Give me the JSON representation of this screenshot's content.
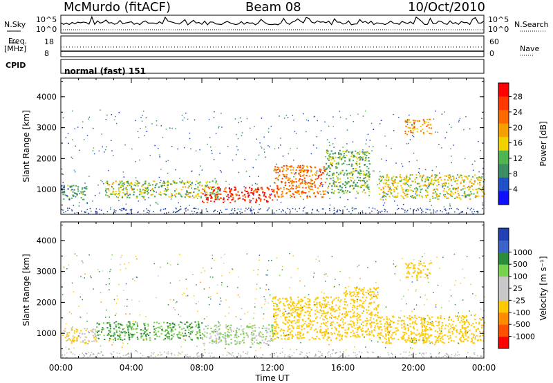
{
  "header": {
    "station": "McMurdo (fitACF)",
    "beam": "Beam 08",
    "date": "10/Oct/2010"
  },
  "status_panel": {
    "nsky_label": "N.Sky",
    "nsearch_label": "N.Search",
    "noise_ticks": [
      "10^5",
      "10^0"
    ],
    "freq_label_line1": "Freq.",
    "freq_label_line2": "[MHz]",
    "freq_ticks": [
      "18",
      "8"
    ],
    "nave_label": "Nave",
    "nave_ticks": [
      "60",
      "0"
    ],
    "cpid_label": "CPID",
    "cpid_value": "normal (fast) 151"
  },
  "colors": {
    "power_scale": [
      "#1010ff",
      "#2050c8",
      "#3c8c64",
      "#50b450",
      "#f0d200",
      "#f5a000",
      "#ff6a00",
      "#ff3800",
      "#ff0000"
    ],
    "velocity_scale": [
      "#ff0000",
      "#ff5000",
      "#ff8c00",
      "#ffc800",
      "#c8c8c8",
      "#c8c8c8",
      "#78d250",
      "#2d8c3c",
      "#3c64c8",
      "#2040b4"
    ]
  },
  "chart_data": [
    {
      "type": "heatmap",
      "name": "power",
      "xlabel": "",
      "ylabel": "Slant Range [km]",
      "x_ticks": [
        "00:00",
        "04:00",
        "08:00",
        "12:00",
        "16:00",
        "20:00",
        "00:00"
      ],
      "y_ticks": [
        1000,
        2000,
        3000,
        4000
      ],
      "ylim": [
        200,
        4600
      ],
      "colorbar_label": "Power [dB]",
      "colorbar_ticks": [
        4,
        8,
        12,
        16,
        20,
        24,
        28
      ],
      "regions": [
        {
          "x_hours": [
            0.0,
            1.5
          ],
          "range_km": [
            700,
            1150
          ],
          "value": 10
        },
        {
          "x_hours": [
            2.5,
            9.0
          ],
          "range_km": [
            750,
            1300
          ],
          "value": 14
        },
        {
          "x_hours": [
            8.0,
            12.0
          ],
          "range_km": [
            600,
            1100
          ],
          "value": 28
        },
        {
          "x_hours": [
            12.0,
            15.0
          ],
          "range_km": [
            750,
            1800
          ],
          "value": 22
        },
        {
          "x_hours": [
            15.0,
            17.5
          ],
          "range_km": [
            900,
            2300
          ],
          "value": 12
        },
        {
          "x_hours": [
            18.0,
            24.0
          ],
          "range_km": [
            700,
            1500
          ],
          "value": 16
        },
        {
          "x_hours": [
            19.5,
            21.0
          ],
          "range_km": [
            2800,
            3300
          ],
          "value": 20
        }
      ]
    },
    {
      "type": "heatmap",
      "name": "velocity",
      "xlabel": "Time UT",
      "ylabel": "Slant Range [km]",
      "x_ticks": [
        "00:00",
        "04:00",
        "08:00",
        "12:00",
        "16:00",
        "20:00",
        "00:00"
      ],
      "y_ticks": [
        1000,
        2000,
        3000,
        4000
      ],
      "ylim": [
        200,
        4600
      ],
      "colorbar_label": "Velocity [m s⁻¹]",
      "colorbar_ticks": [
        -1000,
        -500,
        -100,
        -25,
        25,
        100,
        500,
        1000
      ],
      "regions": [
        {
          "x_hours": [
            0.0,
            2.0
          ],
          "range_km": [
            700,
            1200
          ],
          "value": -100
        },
        {
          "x_hours": [
            2.0,
            8.0
          ],
          "range_km": [
            800,
            1400
          ],
          "value": 100
        },
        {
          "x_hours": [
            8.0,
            12.0
          ],
          "range_km": [
            650,
            1300
          ],
          "value": 25
        },
        {
          "x_hours": [
            12.0,
            16.0
          ],
          "range_km": [
            800,
            2200
          ],
          "value": -200
        },
        {
          "x_hours": [
            16.0,
            18.0
          ],
          "range_km": [
            900,
            2500
          ],
          "value": -200
        },
        {
          "x_hours": [
            18.0,
            24.0
          ],
          "range_km": [
            700,
            1600
          ],
          "value": -200
        },
        {
          "x_hours": [
            19.5,
            21.0
          ],
          "range_km": [
            2800,
            3300
          ],
          "value": -200
        }
      ]
    }
  ]
}
